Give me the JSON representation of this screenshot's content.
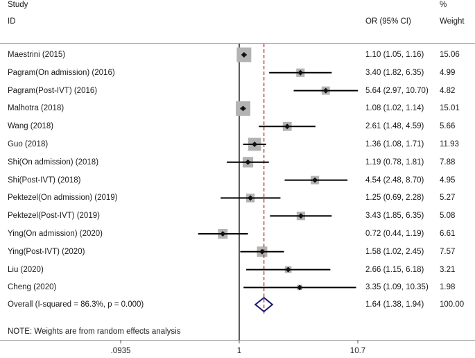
{
  "chart_data": {
    "type": "forest",
    "headers": {
      "study_line1": "Study",
      "study_line2": "ID",
      "or_label": "OR (95% CI)",
      "weight_line1": "%",
      "weight_line2": "Weight"
    },
    "x_scale": "log",
    "xlim": [
      0.0935,
      10.7
    ],
    "x_ticks": [
      ".0935",
      "1",
      "10.7"
    ],
    "reference_line": 1,
    "overall_line": 1.64,
    "studies": [
      {
        "label": "Maestrini (2015)",
        "or": 1.1,
        "lo": 1.05,
        "hi": 1.16,
        "ci_text": "1.10 (1.05, 1.16)",
        "weight": "15.06"
      },
      {
        "label": "Pagram(On admission) (2016)",
        "or": 3.4,
        "lo": 1.82,
        "hi": 6.35,
        "ci_text": "3.40 (1.82, 6.35)",
        "weight": "4.99"
      },
      {
        "label": "Pagram(Post-IVT) (2016)",
        "or": 5.64,
        "lo": 2.97,
        "hi": 10.7,
        "ci_text": "5.64 (2.97, 10.70)",
        "weight": "4.82"
      },
      {
        "label": "Malhotra (2018)",
        "or": 1.08,
        "lo": 1.02,
        "hi": 1.14,
        "ci_text": "1.08 (1.02, 1.14)",
        "weight": "15.01"
      },
      {
        "label": "Wang (2018)",
        "or": 2.61,
        "lo": 1.48,
        "hi": 4.59,
        "ci_text": "2.61 (1.48, 4.59)",
        "weight": "5.66"
      },
      {
        "label": "Guo (2018)",
        "or": 1.36,
        "lo": 1.08,
        "hi": 1.71,
        "ci_text": "1.36 (1.08, 1.71)",
        "weight": "11.93"
      },
      {
        "label": "Shi(On admission) (2018)",
        "or": 1.19,
        "lo": 0.78,
        "hi": 1.81,
        "ci_text": "1.19 (0.78, 1.81)",
        "weight": "7.88"
      },
      {
        "label": "Shi(Post-IVT) (2018)",
        "or": 4.54,
        "lo": 2.48,
        "hi": 8.7,
        "ci_text": "4.54 (2.48, 8.70)",
        "weight": "4.95"
      },
      {
        "label": "Pektezel(On admission) (2019)",
        "or": 1.25,
        "lo": 0.69,
        "hi": 2.28,
        "ci_text": "1.25 (0.69, 2.28)",
        "weight": "5.27"
      },
      {
        "label": "Pektezel(Post-IVT) (2019)",
        "or": 3.43,
        "lo": 1.85,
        "hi": 6.35,
        "ci_text": "3.43 (1.85, 6.35)",
        "weight": "5.08"
      },
      {
        "label": "Ying(On admission) (2020)",
        "or": 0.72,
        "lo": 0.44,
        "hi": 1.19,
        "ci_text": "0.72 (0.44, 1.19)",
        "weight": "6.61"
      },
      {
        "label": "Ying(Post-IVT) (2020)",
        "or": 1.58,
        "lo": 1.02,
        "hi": 2.45,
        "ci_text": "1.58 (1.02, 2.45)",
        "weight": "7.57"
      },
      {
        "label": "Liu (2020)",
        "or": 2.66,
        "lo": 1.15,
        "hi": 6.18,
        "ci_text": "2.66 (1.15, 6.18)",
        "weight": "3.21"
      },
      {
        "label": "Cheng (2020)",
        "or": 3.35,
        "lo": 1.09,
        "hi": 10.35,
        "ci_text": "3.35 (1.09, 10.35)",
        "weight": "1.98"
      }
    ],
    "overall": {
      "label": "Overall  (I-squared = 86.3%, p = 0.000)",
      "or": 1.64,
      "lo": 1.38,
      "hi": 1.94,
      "ci_text": "1.64 (1.38, 1.94)",
      "weight": "100.00"
    },
    "note": "NOTE: Weights are from random effects analysis",
    "colors": {
      "ci_line": "#000000",
      "box": "#b3b3b3",
      "point": "#111111",
      "reference_line": "#000000",
      "overall_line": "#a3262a",
      "diamond": "#1a1a6e"
    }
  }
}
